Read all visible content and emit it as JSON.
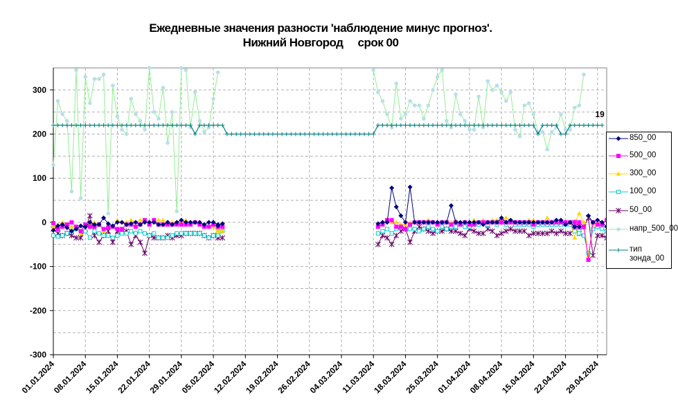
{
  "chart_data": {
    "type": "line",
    "title_line1": "Ежедневные значения разности 'наблюдение минус прогноз'.",
    "title_line2": "Нижний Новгород     срок 00",
    "ylim": [
      -300,
      350
    ],
    "y_ticks": [
      300,
      200,
      100,
      0,
      -100,
      -200,
      -300
    ],
    "xlim": [
      0,
      121
    ],
    "x_tick_positions": [
      0,
      7,
      14,
      21,
      28,
      35,
      42,
      49,
      56,
      63,
      70,
      77,
      84,
      91,
      98,
      105,
      112,
      119
    ],
    "x_tick_labels": [
      "01.01.2024",
      "08.01.2024",
      "15.01.2024",
      "22.01.2024",
      "29.01.2024",
      "05.02.2024",
      "12.02.2024",
      "19.02.2024",
      "26.02.2024",
      "04.03.2024",
      "11.03.2024",
      "18.03.2024",
      "25.03.2024",
      "01.04.2024",
      "08.04.2024",
      "15.04.2024",
      "22.04.2024",
      "29.04.2024"
    ],
    "grid": true,
    "legend_position": "right",
    "end_annotation": "19",
    "series": [
      {
        "name": "850_00",
        "color": "#000080",
        "marker": "diamond",
        "segments": [
          {
            "start": 0,
            "values": [
              -18,
              -8,
              -5,
              -12,
              -20,
              -15,
              -8,
              -10,
              0,
              -5,
              -5,
              10,
              -3,
              -8,
              0,
              0,
              -5,
              -3,
              0,
              -5,
              0,
              0,
              0,
              -5,
              -5,
              0,
              -5,
              0,
              5,
              0,
              0,
              0,
              0,
              -5,
              0,
              0,
              -5
            ]
          },
          {
            "start": 36,
            "values": [
              -8,
              -3
            ]
          },
          {
            "start": 71,
            "values": [
              -3,
              0,
              0,
              78,
              35,
              15,
              0,
              80,
              0,
              0,
              0,
              0,
              0,
              0,
              0,
              0,
              38,
              0,
              0,
              0,
              0,
              0,
              0,
              -5,
              0,
              0,
              0,
              10,
              0,
              5,
              0,
              0,
              0,
              0,
              0,
              0,
              0,
              0,
              0,
              5,
              5,
              -5,
              0,
              -10,
              -10
            ]
          },
          {
            "start": 117,
            "values": [
              15,
              0,
              5,
              0,
              -10
            ]
          }
        ]
      },
      {
        "name": "500_00",
        "color": "#FF00FF",
        "marker": "square",
        "segments": [
          {
            "start": 0,
            "values": [
              -2,
              -15,
              -10,
              -5,
              0,
              -10,
              -20,
              -5,
              -10,
              -10,
              -5,
              -15,
              -12,
              -10,
              -15,
              -15,
              -5,
              -5,
              -10,
              -5,
              5,
              -5,
              5,
              -5,
              -5,
              -5,
              -5,
              -5,
              -5,
              -5,
              -5,
              0,
              -5,
              -10,
              -10,
              -5,
              -10
            ]
          },
          {
            "start": 36,
            "values": [
              -10,
              -10
            ]
          },
          {
            "start": 71,
            "values": [
              -10,
              -5,
              5,
              5,
              -10,
              -10,
              -15,
              -5,
              0,
              0,
              0,
              0,
              0,
              -5,
              0,
              0,
              -5,
              0,
              -5,
              0,
              -5,
              -5,
              0,
              0,
              0,
              0,
              0,
              0,
              0,
              0,
              0,
              0,
              0,
              0,
              -5,
              0,
              0,
              0,
              0,
              0,
              0,
              0,
              0,
              -10,
              -10
            ]
          },
          {
            "start": 114,
            "values": [
              0,
              0,
              -10,
              -85,
              0,
              -5,
              -5,
              5
            ]
          }
        ]
      },
      {
        "name": "300_00",
        "color": "#FFD700",
        "marker": "triangle",
        "segments": [
          {
            "start": 0,
            "values": [
              -10,
              -5,
              0,
              -5,
              -10,
              -10,
              -25,
              -5,
              -5,
              0,
              -5,
              -20,
              -5,
              -10,
              5,
              0,
              0,
              5,
              0,
              5,
              5,
              0,
              0,
              5,
              5,
              -5,
              0,
              0,
              0,
              5,
              0,
              0,
              0,
              -5,
              -10,
              -10,
              -20
            ]
          },
          {
            "start": 36,
            "values": [
              -15,
              -20
            ]
          },
          {
            "start": 71,
            "values": [
              -5,
              0,
              5,
              0,
              0,
              -5,
              -5,
              0,
              0,
              0,
              0,
              5,
              0,
              0,
              0,
              0,
              0,
              5,
              0,
              0,
              0,
              5,
              0,
              5,
              0,
              5,
              5,
              5,
              10,
              5,
              0,
              0,
              0,
              5,
              5,
              0,
              0,
              10,
              0,
              0,
              0,
              0,
              0,
              -35,
              0
            ]
          },
          {
            "start": 114,
            "values": [
              0,
              20,
              0,
              -75,
              -5,
              0,
              0,
              5
            ]
          }
        ]
      },
      {
        "name": "100_00",
        "color": "#00CCCC",
        "marker": "square-open",
        "segments": [
          {
            "start": 0,
            "values": [
              -30,
              -32,
              -30,
              -25,
              -20,
              -15,
              -15,
              -20,
              -35,
              -20,
              -25,
              -30,
              -30,
              -35,
              -30,
              -25,
              -25,
              -20,
              -25,
              -20,
              -25,
              -30,
              -25,
              -35,
              -35,
              -35,
              -30,
              -25,
              -25,
              -25,
              -25,
              -25,
              -25,
              -30,
              -35,
              -30,
              -25
            ]
          },
          {
            "start": 36,
            "values": [
              -30,
              -20
            ]
          },
          {
            "start": 71,
            "values": [
              -25,
              -20,
              -15,
              -25,
              -15,
              -10,
              -15,
              -15,
              -15,
              -20,
              -15,
              -10,
              -15,
              -20,
              -10,
              -15,
              -10,
              -10,
              -5,
              -10,
              -10,
              -5,
              -5,
              0,
              -5,
              0,
              -5,
              0,
              -5,
              0,
              -5,
              -5,
              -5,
              -5,
              -10,
              -5,
              -5,
              -5,
              -5,
              -5,
              -5,
              -5,
              -5,
              -20,
              -20
            ]
          },
          {
            "start": 114,
            "values": [
              -20,
              -25,
              -30,
              -70,
              -15,
              -10,
              -15,
              -20
            ]
          }
        ]
      },
      {
        "name": "50_00",
        "color": "#660066",
        "marker": "asterisk",
        "segments": [
          {
            "start": 0,
            "values": [
              -15,
              -25,
              -30,
              -25,
              -30,
              -35,
              -35,
              -15,
              15,
              -30,
              -45,
              -30,
              -20,
              -45,
              -20,
              -20,
              -20,
              -50,
              -30,
              -45,
              -70,
              -30,
              -35,
              -35,
              -35,
              -30,
              -35,
              -30,
              -30,
              -25,
              -25,
              -25,
              -25,
              -30,
              -35,
              -30,
              -35
            ]
          },
          {
            "start": 36,
            "values": [
              -35,
              -35
            ]
          },
          {
            "start": 71,
            "values": [
              -50,
              -30,
              -35,
              -50,
              -30,
              -20,
              -15,
              -45,
              -20,
              -10,
              -15,
              -20,
              -25,
              -20,
              -20,
              -15,
              -20,
              -20,
              -25,
              -30,
              -15,
              -20,
              -25,
              -25,
              -15,
              -20,
              -30,
              -25,
              -20,
              -15,
              -20,
              -20,
              -20,
              -30,
              -25,
              -25,
              -25,
              -25,
              -20,
              -25,
              -20,
              -25,
              -25,
              -15,
              -25
            ]
          },
          {
            "start": 114,
            "values": [
              0,
              -10,
              -10,
              10,
              -75,
              -30,
              -30,
              -35
            ]
          }
        ]
      },
      {
        "name": "напр_500_00",
        "color": "#B8E0E8",
        "line_color": "#90EE90",
        "marker": "dot",
        "segments": [
          {
            "start": 0,
            "values": [
              130,
              275,
              245,
              230,
              70,
              345,
              55,
              330,
              270,
              325,
              325,
              335,
              20,
              310,
              240,
              210,
              200,
              280,
              245,
              230,
              210,
              350,
              250,
              235,
              305,
              180,
              250,
              25,
              350,
              345,
              215,
              295,
              230,
              205,
              215,
              280,
              340
            ]
          },
          {
            "start": 70,
            "values": [
              345,
              295,
              275,
              245,
              215,
              315,
              235,
              245,
              275,
              265,
              265,
              235,
              265,
              300,
              330,
              345,
              230,
              215,
              290,
              245,
              230,
              210,
              210,
              285,
              215,
              320,
              300,
              310,
              295,
              275,
              295,
              210,
              195,
              265,
              270,
              245,
              205,
              205,
              165,
              205,
              215,
              245,
              210,
              210,
              260,
              265,
              335
            ]
          }
        ]
      },
      {
        "name": "тип зонда_00",
        "color": "#008080",
        "marker": "plus",
        "segments": [
          {
            "start": 0,
            "values": [
              220,
              220,
              220,
              220,
              220,
              220,
              220,
              220,
              220,
              220,
              220,
              220,
              220,
              220,
              220,
              220,
              220,
              220,
              220,
              220,
              220,
              220,
              220,
              220,
              220,
              220,
              220,
              220,
              220,
              220,
              220,
              200,
              220,
              220,
              220,
              220,
              220,
              220,
              200,
              200,
              200,
              200,
              200,
              200,
              200,
              200,
              200,
              200,
              200,
              200,
              200,
              200,
              200,
              200,
              200,
              200,
              200,
              200,
              200,
              200,
              200,
              200,
              200,
              200,
              200,
              200,
              200,
              200,
              200,
              200,
              200,
              220,
              220,
              220,
              220,
              220,
              220,
              220,
              220,
              220,
              220,
              220,
              220,
              220,
              220,
              220,
              220,
              220,
              220,
              220,
              220,
              220,
              220,
              220,
              220,
              220,
              220,
              220,
              220,
              220,
              220,
              220,
              220,
              220,
              220,
              220,
              200,
              220,
              220,
              220,
              220,
              200,
              200,
              220,
              220,
              220,
              220,
              220,
              220,
              220,
              220
            ]
          }
        ]
      }
    ]
  },
  "legend": {
    "items": [
      "850_00",
      "500_00",
      "300_00",
      "100_00",
      "50_00",
      "напр_500_00",
      "тип зонда_00"
    ]
  }
}
